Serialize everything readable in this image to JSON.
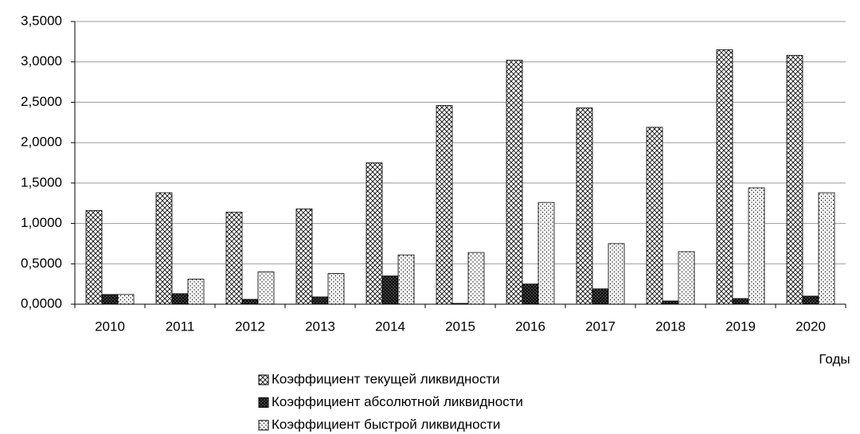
{
  "chart_data": {
    "type": "bar",
    "x_label": "Годы",
    "categories": [
      "2010",
      "2011",
      "2012",
      "2013",
      "2014",
      "2015",
      "2016",
      "2017",
      "2018",
      "2019",
      "2020"
    ],
    "series": [
      {
        "name": "Коэффициент текущей ликвидности",
        "pattern": "crosshatch",
        "color": "#000000",
        "values": [
          1.16,
          1.38,
          1.14,
          1.18,
          1.75,
          2.46,
          3.02,
          2.43,
          2.19,
          3.15,
          3.08
        ]
      },
      {
        "name": "Коэффициент абсолютной ликвидности",
        "pattern": "dense-crosshatch",
        "color": "#000000",
        "values": [
          0.12,
          0.13,
          0.06,
          0.09,
          0.35,
          0.01,
          0.25,
          0.19,
          0.04,
          0.07,
          0.1
        ]
      },
      {
        "name": "Коэффициент быстрой ликвидности",
        "pattern": "dots",
        "color": "#000000",
        "values": [
          0.12,
          0.31,
          0.4,
          0.38,
          0.61,
          0.64,
          1.26,
          0.75,
          0.65,
          1.44,
          1.38
        ]
      }
    ],
    "ylim": [
      0,
      3.5
    ],
    "yticks": [
      {
        "value": 0,
        "label": "0,0000"
      },
      {
        "value": 0.5,
        "label": "0,5000"
      },
      {
        "value": 1,
        "label": "1,0000"
      },
      {
        "value": 1.5,
        "label": "1,5000"
      },
      {
        "value": 2,
        "label": "2,0000"
      },
      {
        "value": 2.5,
        "label": "2,5000"
      },
      {
        "value": 3,
        "label": "3,0000"
      },
      {
        "value": 3.5,
        "label": "3,5000"
      }
    ],
    "grid": true,
    "legend": "bottom"
  }
}
